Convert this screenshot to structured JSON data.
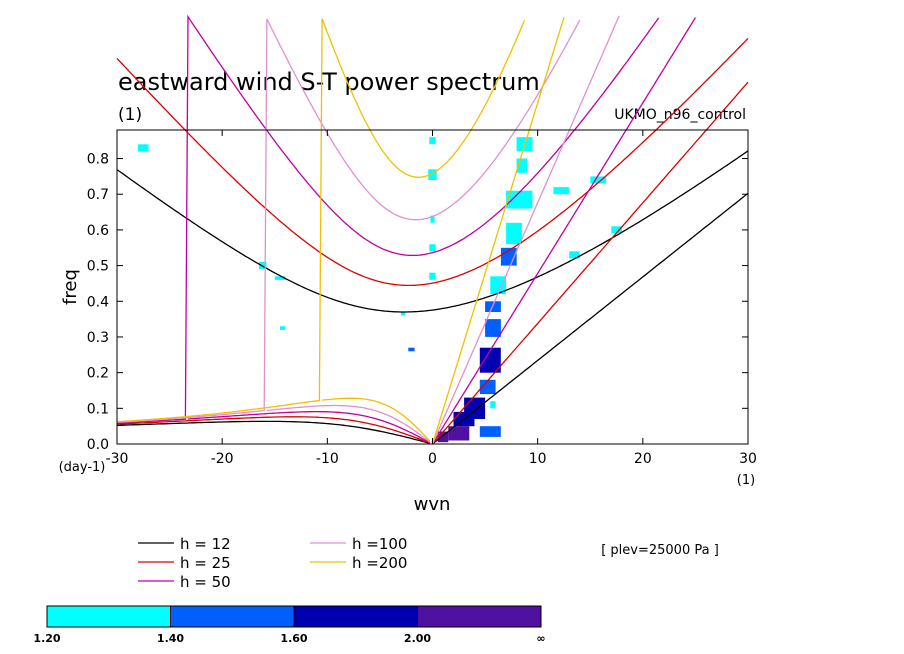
{
  "chart_data": {
    "type": "contour",
    "title": "eastward wind S-T power spectrum",
    "subtitle_left": "(1)",
    "subtitle_right": "UKMO_n96_control",
    "xlabel": "wvn",
    "ylabel": "freq",
    "x_unit": "(1)",
    "y_unit": "(day-1)",
    "xlim": [
      -30,
      30
    ],
    "ylim": [
      0,
      0.88
    ],
    "x_ticks": [
      -30,
      -20,
      -10,
      0,
      10,
      20,
      30
    ],
    "x_tick_labels": [
      "-30",
      "-20",
      "-10",
      "0",
      "10",
      "20",
      "30"
    ],
    "y_ticks": [
      0,
      0.1,
      0.2,
      0.3,
      0.4,
      0.5,
      0.6,
      0.7,
      0.8
    ],
    "y_tick_labels": [
      "0.0",
      "0.1",
      "0.2",
      "0.3",
      "0.4",
      "0.5",
      "0.6",
      "0.7",
      "0.8"
    ],
    "note": "[ plev=25000 Pa ]",
    "dispersion_curves": [
      {
        "label": "h = 12",
        "h": 12,
        "color": "#000000"
      },
      {
        "label": "h = 25",
        "h": 25,
        "color": "#dd0000"
      },
      {
        "label": "h = 50",
        "h": 50,
        "color": "#c000a0"
      },
      {
        "label": "h =100",
        "h": 100,
        "color": "#e090d0"
      },
      {
        "label": "h =200",
        "h": 200,
        "color": "#f0c000"
      }
    ],
    "colorbar": {
      "levels": [
        "1.20",
        "1.40",
        "1.60",
        "2.00",
        "∞"
      ],
      "colors": [
        "#00ffff",
        "#0060ff",
        "#0000b0",
        "#5010a0"
      ]
    },
    "shaded_regions": [
      {
        "x0": 0.5,
        "x1": 1.5,
        "y0": 0.005,
        "y1": 0.035,
        "level": 3
      },
      {
        "x0": 1.5,
        "x1": 3.5,
        "y0": 0.01,
        "y1": 0.05,
        "level": 3
      },
      {
        "x0": 2.0,
        "x1": 4.0,
        "y0": 0.05,
        "y1": 0.09,
        "level": 2
      },
      {
        "x0": 3.0,
        "x1": 5.0,
        "y0": 0.07,
        "y1": 0.13,
        "level": 2
      },
      {
        "x0": 4.5,
        "x1": 6.0,
        "y0": 0.14,
        "y1": 0.18,
        "level": 1
      },
      {
        "x0": 4.5,
        "x1": 6.5,
        "y0": 0.2,
        "y1": 0.27,
        "level": 2
      },
      {
        "x0": 5.0,
        "x1": 6.5,
        "y0": 0.3,
        "y1": 0.35,
        "level": 1
      },
      {
        "x0": 5.0,
        "x1": 6.5,
        "y0": 0.37,
        "y1": 0.4,
        "level": 1
      },
      {
        "x0": 5.5,
        "x1": 7.0,
        "y0": 0.42,
        "y1": 0.47,
        "level": 0
      },
      {
        "x0": 6.5,
        "x1": 8.0,
        "y0": 0.5,
        "y1": 0.55,
        "level": 1
      },
      {
        "x0": 7.0,
        "x1": 8.5,
        "y0": 0.56,
        "y1": 0.62,
        "level": 0
      },
      {
        "x0": 7.0,
        "x1": 9.5,
        "y0": 0.66,
        "y1": 0.71,
        "level": 0
      },
      {
        "x0": 8.0,
        "x1": 9.0,
        "y0": 0.76,
        "y1": 0.8,
        "level": 0
      },
      {
        "x0": 8.0,
        "x1": 9.5,
        "y0": 0.82,
        "y1": 0.86,
        "level": 0
      },
      {
        "x0": 4.5,
        "x1": 6.5,
        "y0": 0.02,
        "y1": 0.05,
        "level": 1
      },
      {
        "x0": 5.5,
        "x1": 6.0,
        "y0": 0.1,
        "y1": 0.12,
        "level": 0
      },
      {
        "x0": -0.3,
        "x1": 0.3,
        "y0": 0.46,
        "y1": 0.48,
        "level": 0
      },
      {
        "x0": -0.3,
        "x1": 0.3,
        "y0": 0.54,
        "y1": 0.56,
        "level": 0
      },
      {
        "x0": -0.2,
        "x1": 0.2,
        "y0": 0.62,
        "y1": 0.64,
        "level": 0
      },
      {
        "x0": -0.4,
        "x1": 0.4,
        "y0": 0.74,
        "y1": 0.77,
        "level": 0
      },
      {
        "x0": -0.3,
        "x1": 0.3,
        "y0": 0.84,
        "y1": 0.86,
        "level": 0
      },
      {
        "x0": -2.3,
        "x1": -1.7,
        "y0": 0.26,
        "y1": 0.27,
        "level": 1
      },
      {
        "x0": 11.5,
        "x1": 13.0,
        "y0": 0.7,
        "y1": 0.72,
        "level": 0
      },
      {
        "x0": 15.0,
        "x1": 16.5,
        "y0": 0.73,
        "y1": 0.75,
        "level": 0
      },
      {
        "x0": 13.0,
        "x1": 14.0,
        "y0": 0.52,
        "y1": 0.54,
        "level": 0
      },
      {
        "x0": 17.0,
        "x1": 18.0,
        "y0": 0.59,
        "y1": 0.61,
        "level": 0
      },
      {
        "x0": -28.0,
        "x1": -27.0,
        "y0": 0.82,
        "y1": 0.84,
        "level": 0
      },
      {
        "x0": -16.5,
        "x1": -15.8,
        "y0": 0.49,
        "y1": 0.51,
        "level": 0
      },
      {
        "x0": -15.0,
        "x1": -14.0,
        "y0": 0.46,
        "y1": 0.47,
        "level": 0
      },
      {
        "x0": -14.5,
        "x1": -14.0,
        "y0": 0.32,
        "y1": 0.33,
        "level": 0
      },
      {
        "x0": -3.0,
        "x1": -2.6,
        "y0": 0.36,
        "y1": 0.37,
        "level": 0
      }
    ]
  }
}
